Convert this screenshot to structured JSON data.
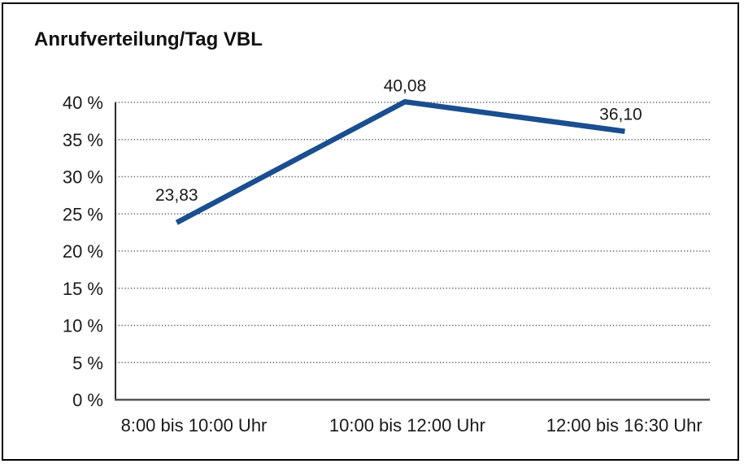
{
  "chart_data": {
    "type": "line",
    "title": "Anrufverteilung/Tag VBL",
    "categories": [
      "8:00 bis 10:00 Uhr",
      "10:00 bis 12:00 Uhr",
      "12:00 bis 16:30 Uhr"
    ],
    "values": [
      23.83,
      40.08,
      36.1
    ],
    "point_labels": [
      "23,83",
      "40,08",
      "36,10"
    ],
    "ytick_labels": [
      "0 %",
      "5 %",
      "10 %",
      "15 %",
      "20 %",
      "25 %",
      "30 %",
      "35 %",
      "40 %"
    ],
    "ytick_values": [
      0,
      5,
      10,
      15,
      20,
      25,
      30,
      35,
      40
    ],
    "ylim": [
      0,
      40
    ],
    "xlabel": "",
    "ylabel": "",
    "legend": "none",
    "grid": "horizontal-dotted",
    "colors": {
      "line": "#1a4e8f",
      "grid": "#555555",
      "axis_y": "#2b2b2b",
      "axis_x": "#555555",
      "text": "#1a1a1a",
      "border": "#000000",
      "background": "#ffffff"
    }
  }
}
